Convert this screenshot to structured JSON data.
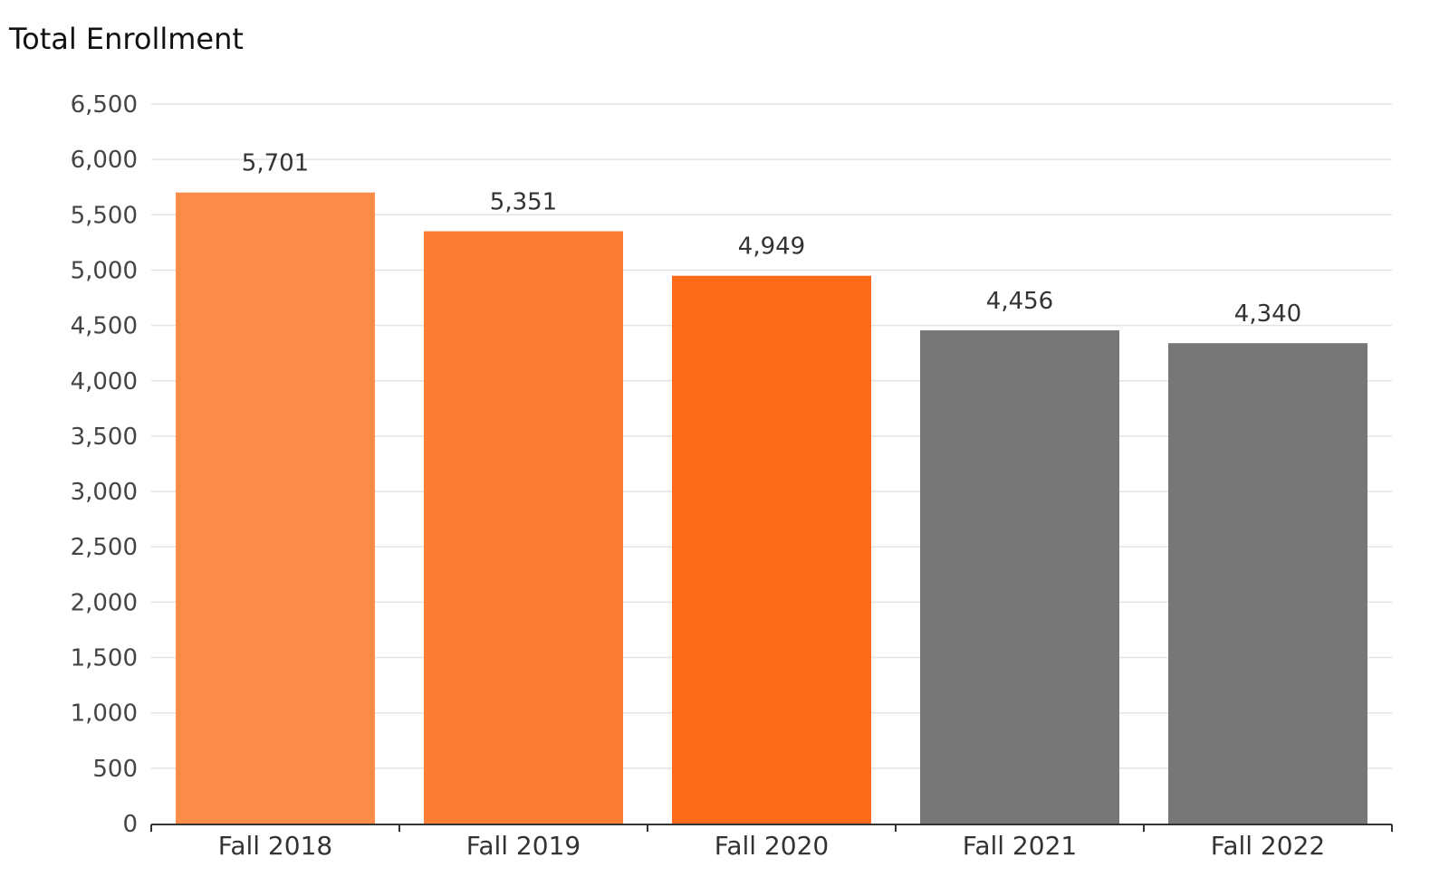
{
  "chart_data": {
    "type": "bar",
    "title": "Total Enrollment",
    "xlabel": "",
    "ylabel": "",
    "categories": [
      "Fall 2018",
      "Fall 2019",
      "Fall 2020",
      "Fall 2021",
      "Fall 2022"
    ],
    "values": [
      5701,
      5351,
      4949,
      4456,
      4340
    ],
    "value_labels": [
      "5,701",
      "5,351",
      "4,949",
      "4,456",
      "4,340"
    ],
    "bar_colors": [
      "#FC8B4A",
      "#FC7D33",
      "#FD6B1A",
      "#777777",
      "#777777"
    ],
    "ylim": [
      0,
      6500
    ],
    "yticks": [
      0,
      500,
      1000,
      1500,
      2000,
      2500,
      3000,
      3500,
      4000,
      4500,
      5000,
      5500,
      6000,
      6500
    ],
    "ytick_labels": [
      "0",
      "500",
      "1,000",
      "1,500",
      "2,000",
      "2,500",
      "3,000",
      "3,500",
      "4,000",
      "4,500",
      "5,000",
      "5,500",
      "6,000",
      "6,500"
    ],
    "grid": true,
    "legend": "none",
    "grid_color": "#E3E3E3",
    "axis_color": "#333333"
  }
}
